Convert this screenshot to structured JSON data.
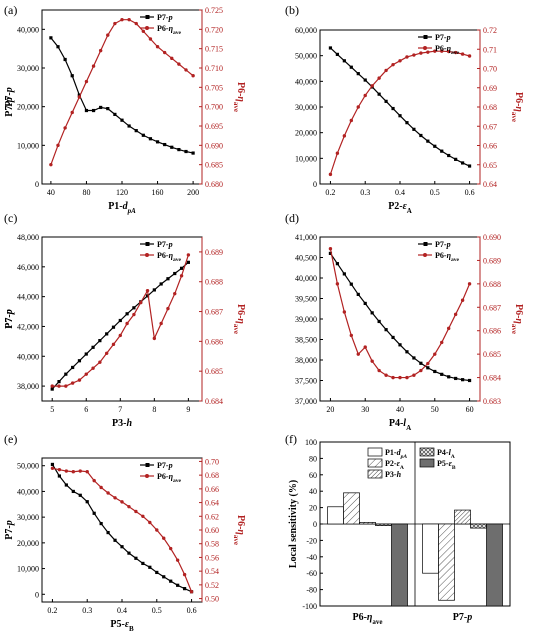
{
  "colors": {
    "black": "#000000",
    "red": "#b22222",
    "grid": "#000000"
  },
  "chart_data": [
    {
      "id": "a",
      "type": "line",
      "panel_label": "(a)",
      "xlabel": "P1-d_pA",
      "ylabel": "P7-p",
      "y2label": "P6-η_ave",
      "xlim": [
        30,
        210
      ],
      "xticks": [
        40,
        80,
        120,
        160,
        200
      ],
      "xtick_labels": [
        "40",
        "80",
        "120",
        "160",
        "200"
      ],
      "ylim": [
        0,
        45000
      ],
      "yticks": [
        0,
        10000,
        20000,
        30000,
        40000
      ],
      "ytick_labels": [
        "0",
        "10,000",
        "20,000",
        "30,000",
        "40,000"
      ],
      "y2lim": [
        0.68,
        0.725
      ],
      "y2ticks": [
        0.68,
        0.685,
        0.69,
        0.695,
        0.7,
        0.705,
        0.71,
        0.715,
        0.72,
        0.725
      ],
      "y2tick_labels": [
        "0.680",
        "0.685",
        "0.690",
        "0.695",
        "0.700",
        "0.705",
        "0.710",
        "0.715",
        "0.720",
        "0.725"
      ],
      "legend": [
        "P7-p",
        "P6-η_ave"
      ],
      "series": [
        {
          "name": "P7-p",
          "axis": "left",
          "color": "#000000",
          "marker": "square",
          "x": [
            40,
            48,
            56,
            64,
            72,
            80,
            88,
            96,
            104,
            112,
            120,
            128,
            136,
            144,
            152,
            160,
            168,
            176,
            184,
            192,
            200
          ],
          "values": [
            37800,
            35500,
            32200,
            28000,
            23000,
            19000,
            19000,
            19800,
            19500,
            18000,
            16500,
            15000,
            13800,
            12600,
            11700,
            10900,
            10200,
            9500,
            8900,
            8400,
            8000
          ]
        },
        {
          "name": "P6-η_ave",
          "axis": "right",
          "color": "#b22222",
          "marker": "circle",
          "x": [
            40,
            48,
            56,
            64,
            72,
            80,
            88,
            96,
            104,
            112,
            120,
            128,
            136,
            144,
            152,
            160,
            168,
            176,
            184,
            192,
            200
          ],
          "values": [
            0.685,
            0.69,
            0.6945,
            0.6985,
            0.7025,
            0.7065,
            0.7105,
            0.7145,
            0.7185,
            0.7215,
            0.7225,
            0.7225,
            0.7215,
            0.7195,
            0.7175,
            0.7155,
            0.714,
            0.7125,
            0.711,
            0.7095,
            0.708
          ]
        }
      ]
    },
    {
      "id": "b",
      "type": "line",
      "panel_label": "(b)",
      "xlabel": "P2-ε_A",
      "ylabel": "P7-p",
      "y2label": "P6-η_ave",
      "xlim": [
        0.17,
        0.63
      ],
      "xticks": [
        0.2,
        0.3,
        0.4,
        0.5,
        0.6
      ],
      "xtick_labels": [
        "0.2",
        "0.3",
        "0.4",
        "0.5",
        "0.6"
      ],
      "ylim": [
        0,
        60000
      ],
      "yticks": [
        0,
        10000,
        20000,
        30000,
        40000,
        50000,
        60000
      ],
      "ytick_labels": [
        "0",
        "10,000",
        "20,000",
        "30,000",
        "40,000",
        "50,000",
        "60,000"
      ],
      "y2lim": [
        0.64,
        0.72
      ],
      "y2ticks": [
        0.64,
        0.65,
        0.66,
        0.67,
        0.68,
        0.69,
        0.7,
        0.71,
        0.72
      ],
      "y2tick_labels": [
        "0.64",
        "0.65",
        "0.66",
        "0.67",
        "0.68",
        "0.69",
        "0.70",
        "0.71",
        "0.72"
      ],
      "legend": [
        "P7-p",
        "P6-η_ave"
      ],
      "series": [
        {
          "name": "P7-p",
          "axis": "left",
          "color": "#000000",
          "marker": "square",
          "x": [
            0.2,
            0.22,
            0.24,
            0.26,
            0.28,
            0.3,
            0.32,
            0.34,
            0.36,
            0.38,
            0.4,
            0.42,
            0.44,
            0.46,
            0.48,
            0.5,
            0.52,
            0.54,
            0.56,
            0.58,
            0.6
          ],
          "values": [
            53000,
            50500,
            48000,
            45500,
            43000,
            40500,
            37800,
            35000,
            32200,
            29400,
            26600,
            23900,
            21300,
            18900,
            16700,
            14700,
            12800,
            11100,
            9600,
            8200,
            7000
          ]
        },
        {
          "name": "P6-η_ave",
          "axis": "right",
          "color": "#b22222",
          "marker": "circle",
          "x": [
            0.2,
            0.22,
            0.24,
            0.26,
            0.28,
            0.3,
            0.32,
            0.34,
            0.36,
            0.38,
            0.4,
            0.42,
            0.44,
            0.46,
            0.48,
            0.5,
            0.52,
            0.54,
            0.56,
            0.58,
            0.6
          ],
          "values": [
            0.645,
            0.656,
            0.665,
            0.673,
            0.68,
            0.686,
            0.691,
            0.695,
            0.699,
            0.702,
            0.704,
            0.706,
            0.707,
            0.708,
            0.7085,
            0.709,
            0.709,
            0.7088,
            0.7083,
            0.7075,
            0.7065
          ]
        }
      ]
    },
    {
      "id": "c",
      "type": "line",
      "panel_label": "(c)",
      "xlabel": "P3-h",
      "ylabel": "P7-p",
      "y2label": "P6-η_ave",
      "xlim": [
        4.7,
        9.4
      ],
      "xticks": [
        5,
        6,
        7,
        8,
        9
      ],
      "xtick_labels": [
        "5",
        "6",
        "7",
        "8",
        "9"
      ],
      "ylim": [
        37000,
        48000
      ],
      "yticks": [
        38000,
        40000,
        42000,
        44000,
        46000,
        48000
      ],
      "ytick_labels": [
        "38,000",
        "40,000",
        "42,000",
        "44,000",
        "46,000",
        "48,000"
      ],
      "y2lim": [
        0.684,
        0.6895
      ],
      "y2ticks": [
        0.684,
        0.685,
        0.686,
        0.687,
        0.688,
        0.689
      ],
      "y2tick_labels": [
        "0.684",
        "0.685",
        "0.686",
        "0.687",
        "0.688",
        "0.689"
      ],
      "legend": [
        "P7-p",
        "P6-η_ave"
      ],
      "series": [
        {
          "name": "P7-p",
          "axis": "left",
          "color": "#000000",
          "marker": "square",
          "x": [
            5,
            5.2,
            5.4,
            5.6,
            5.8,
            6,
            6.2,
            6.4,
            6.6,
            6.8,
            7,
            7.2,
            7.4,
            7.6,
            7.8,
            8,
            8.2,
            8.4,
            8.6,
            8.8,
            9
          ],
          "values": [
            37800,
            38300,
            38800,
            39250,
            39700,
            40150,
            40600,
            41050,
            41500,
            41950,
            42400,
            42850,
            43250,
            43650,
            44050,
            44450,
            44850,
            45200,
            45550,
            45900,
            46300
          ]
        },
        {
          "name": "P6-η_ave",
          "axis": "right",
          "color": "#b22222",
          "marker": "circle",
          "x": [
            5,
            5.2,
            5.4,
            5.6,
            5.8,
            6,
            6.2,
            6.4,
            6.6,
            6.8,
            7,
            7.2,
            7.4,
            7.6,
            7.8,
            8,
            8.2,
            8.4,
            8.6,
            8.8,
            9
          ],
          "values": [
            0.6845,
            0.6845,
            0.6845,
            0.6846,
            0.6847,
            0.6849,
            0.6851,
            0.6853,
            0.6856,
            0.6859,
            0.6862,
            0.6866,
            0.6869,
            0.6873,
            0.6877,
            0.6861,
            0.6866,
            0.6871,
            0.6876,
            0.6882,
            0.6889
          ]
        }
      ]
    },
    {
      "id": "d",
      "type": "line",
      "panel_label": "(d)",
      "xlabel": "P4-l_A",
      "ylabel": "P7-p",
      "y2label": "P6-η_ave",
      "xlim": [
        17,
        63
      ],
      "xticks": [
        20,
        30,
        40,
        50,
        60
      ],
      "xtick_labels": [
        "20",
        "30",
        "40",
        "50",
        "60"
      ],
      "ylim": [
        37000,
        41000
      ],
      "yticks": [
        37000,
        37500,
        38000,
        38500,
        39000,
        39500,
        40000,
        40500,
        41000
      ],
      "ytick_labels": [
        "37,000",
        "37,500",
        "38,000",
        "38,500",
        "39,000",
        "39,500",
        "40,000",
        "40,500",
        "41,000"
      ],
      "y2lim": [
        0.683,
        0.69
      ],
      "y2ticks": [
        0.683,
        0.684,
        0.685,
        0.686,
        0.687,
        0.688,
        0.689,
        0.69
      ],
      "y2tick_labels": [
        "0.683",
        "0.684",
        "0.685",
        "0.686",
        "0.687",
        "0.688",
        "0.689",
        "0.690"
      ],
      "legend": [
        "P7-p",
        "P6-η_ave"
      ],
      "series": [
        {
          "name": "P7-p",
          "axis": "left",
          "color": "#000000",
          "marker": "square",
          "x": [
            20,
            22,
            24,
            26,
            28,
            30,
            32,
            34,
            36,
            38,
            40,
            42,
            44,
            46,
            48,
            50,
            52,
            54,
            56,
            58,
            60
          ],
          "values": [
            40600,
            40350,
            40100,
            39850,
            39600,
            39380,
            39150,
            38940,
            38740,
            38550,
            38370,
            38200,
            38050,
            37920,
            37810,
            37720,
            37650,
            37590,
            37550,
            37520,
            37500
          ]
        },
        {
          "name": "P6-η_ave",
          "axis": "right",
          "color": "#b22222",
          "marker": "circle",
          "x": [
            20,
            22,
            24,
            26,
            28,
            30,
            32,
            34,
            36,
            38,
            40,
            42,
            44,
            46,
            48,
            50,
            52,
            54,
            56,
            58,
            60
          ],
          "values": [
            0.6895,
            0.688,
            0.6868,
            0.6858,
            0.685,
            0.6853,
            0.6847,
            0.6843,
            0.6841,
            0.684,
            0.684,
            0.684,
            0.6841,
            0.6843,
            0.6846,
            0.685,
            0.6855,
            0.6861,
            0.6867,
            0.6873,
            0.688
          ]
        }
      ]
    },
    {
      "id": "e",
      "type": "line",
      "panel_label": "(e)",
      "xlabel": "P5-ε_B",
      "ylabel": "P7-p",
      "y2label": "P6-η_ave",
      "xlim": [
        0.17,
        0.63
      ],
      "xticks": [
        0.2,
        0.3,
        0.4,
        0.5,
        0.6
      ],
      "xtick_labels": [
        "0.2",
        "0.3",
        "0.4",
        "0.5",
        "0.6"
      ],
      "ylim": [
        -3000,
        53000
      ],
      "yticks": [
        0,
        10000,
        20000,
        30000,
        40000,
        50000
      ],
      "ytick_labels": [
        "0",
        "10,000",
        "20,000",
        "30,000",
        "40,000",
        "50,000"
      ],
      "y2lim": [
        0.495,
        0.705
      ],
      "y2ticks": [
        0.5,
        0.52,
        0.54,
        0.56,
        0.58,
        0.6,
        0.62,
        0.64,
        0.66,
        0.68,
        0.7
      ],
      "y2tick_labels": [
        "0.50",
        "0.52",
        "0.54",
        "0.56",
        "0.58",
        "0.60",
        "0.62",
        "0.64",
        "0.66",
        "0.68",
        "0.70"
      ],
      "legend": [
        "P7-p",
        "P6-η_ave"
      ],
      "series": [
        {
          "name": "P7-p",
          "axis": "left",
          "color": "#000000",
          "marker": "square",
          "x": [
            0.2,
            0.22,
            0.24,
            0.26,
            0.28,
            0.3,
            0.32,
            0.34,
            0.36,
            0.38,
            0.4,
            0.42,
            0.44,
            0.46,
            0.48,
            0.5,
            0.52,
            0.54,
            0.56,
            0.58,
            0.6
          ],
          "values": [
            50500,
            46000,
            42500,
            40000,
            38500,
            36000,
            31500,
            27500,
            24000,
            21000,
            18500,
            16000,
            14000,
            12000,
            10500,
            8500,
            6800,
            5100,
            3500,
            2200,
            1000
          ]
        },
        {
          "name": "P6-η_ave",
          "axis": "right",
          "color": "#b22222",
          "marker": "circle",
          "x": [
            0.2,
            0.22,
            0.24,
            0.26,
            0.28,
            0.3,
            0.32,
            0.34,
            0.36,
            0.38,
            0.4,
            0.42,
            0.44,
            0.46,
            0.48,
            0.5,
            0.52,
            0.54,
            0.56,
            0.58,
            0.6
          ],
          "values": [
            0.69,
            0.688,
            0.686,
            0.685,
            0.686,
            0.685,
            0.672,
            0.662,
            0.654,
            0.647,
            0.641,
            0.634,
            0.627,
            0.62,
            0.611,
            0.6,
            0.588,
            0.573,
            0.556,
            0.535,
            0.51
          ]
        }
      ]
    },
    {
      "id": "f",
      "type": "bar",
      "panel_label": "(f)",
      "xlabel": "",
      "ylabel": "Local sensitivity (%)",
      "ylim": [
        -100,
        100
      ],
      "yticks": [
        -100,
        -80,
        -60,
        -40,
        -20,
        0,
        20,
        40,
        60,
        80,
        100
      ],
      "ytick_labels": [
        "-100",
        "-80",
        "-60",
        "-40",
        "-20",
        "0",
        "20",
        "40",
        "60",
        "80",
        "100"
      ],
      "categories": [
        "P6-η_ave",
        "P7-p"
      ],
      "legend": [
        "P1-d_pA",
        "P2-ε_A",
        "P3-h",
        "P4-l_A",
        "P5-ε_B"
      ],
      "series": [
        {
          "name": "P1-d_pA",
          "fill": "white",
          "values": [
            21,
            -60
          ]
        },
        {
          "name": "P2-ε_A",
          "fill": "diag",
          "values": [
            38,
            -93
          ]
        },
        {
          "name": "P3-h",
          "fill": "dense-diag",
          "values": [
            2,
            17
          ]
        },
        {
          "name": "P4-l_A",
          "fill": "cross",
          "values": [
            -2,
            -5
          ]
        },
        {
          "name": "P5-ε_B",
          "fill": "gray",
          "values": [
            -100,
            -100
          ]
        }
      ]
    }
  ]
}
